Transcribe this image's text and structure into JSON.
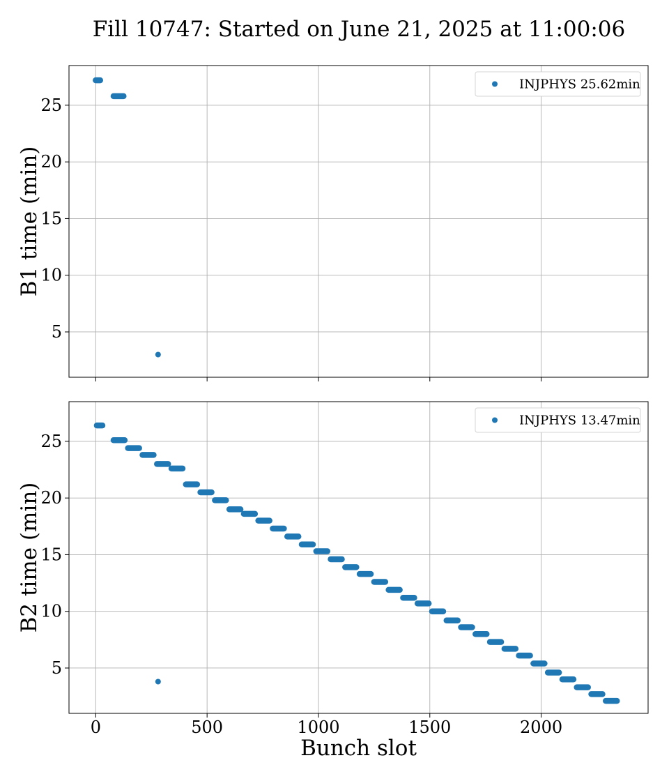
{
  "title": "Fill 10747: Started on June 21, 2025 at 11:00:06",
  "colors": {
    "series": "#1f77b4",
    "grid": "#b0b0b0"
  },
  "chart_data": [
    {
      "type": "scatter",
      "ylabel": "B1 time (min)",
      "xlabel": "",
      "xlim": [
        -120,
        2480
      ],
      "ylim": [
        1,
        28.5
      ],
      "xticks": [
        0,
        500,
        1000,
        1500,
        2000
      ],
      "yticks": [
        5,
        10,
        15,
        20,
        25
      ],
      "grid": true,
      "legend_position": "top-right",
      "series": [
        {
          "name": "INJPHYS 25.62min",
          "segments": [
            {
              "x": [
                0,
                20
              ],
              "y": 27.2
            },
            {
              "x": [
                80,
                125
              ],
              "y": 25.8
            },
            {
              "x": [
                280,
                280
              ],
              "y": 3.0
            }
          ]
        }
      ]
    },
    {
      "type": "scatter",
      "ylabel": "B2 time (min)",
      "xlabel": "Bunch slot",
      "xlim": [
        -120,
        2480
      ],
      "ylim": [
        1,
        28.5
      ],
      "xticks": [
        0,
        500,
        1000,
        1500,
        2000
      ],
      "yticks": [
        5,
        10,
        15,
        20,
        25
      ],
      "grid": true,
      "legend_position": "top-right",
      "series": [
        {
          "name": "INJPHYS 13.47min",
          "segments": [
            {
              "x": [
                5,
                30
              ],
              "y": 26.4
            },
            {
              "x": [
                80,
                130
              ],
              "y": 25.1
            },
            {
              "x": [
                145,
                195
              ],
              "y": 24.4
            },
            {
              "x": [
                210,
                260
              ],
              "y": 23.8
            },
            {
              "x": [
                275,
                325
              ],
              "y": 23.0
            },
            {
              "x": [
                340,
                390
              ],
              "y": 22.6
            },
            {
              "x": [
                405,
                455
              ],
              "y": 21.2
            },
            {
              "x": [
                470,
                520
              ],
              "y": 20.5
            },
            {
              "x": [
                535,
                585
              ],
              "y": 19.8
            },
            {
              "x": [
                600,
                650
              ],
              "y": 19.0
            },
            {
              "x": [
                665,
                715
              ],
              "y": 18.6
            },
            {
              "x": [
                730,
                780
              ],
              "y": 18.0
            },
            {
              "x": [
                795,
                845
              ],
              "y": 17.3
            },
            {
              "x": [
                860,
                910
              ],
              "y": 16.6
            },
            {
              "x": [
                925,
                975
              ],
              "y": 15.9
            },
            {
              "x": [
                990,
                1040
              ],
              "y": 15.3
            },
            {
              "x": [
                1055,
                1105
              ],
              "y": 14.6
            },
            {
              "x": [
                1120,
                1170
              ],
              "y": 13.9
            },
            {
              "x": [
                1185,
                1235
              ],
              "y": 13.3
            },
            {
              "x": [
                1250,
                1300
              ],
              "y": 12.6
            },
            {
              "x": [
                1315,
                1365
              ],
              "y": 11.9
            },
            {
              "x": [
                1380,
                1430
              ],
              "y": 11.2
            },
            {
              "x": [
                1445,
                1495
              ],
              "y": 10.7
            },
            {
              "x": [
                1510,
                1560
              ],
              "y": 10.0
            },
            {
              "x": [
                1575,
                1625
              ],
              "y": 9.2
            },
            {
              "x": [
                1640,
                1690
              ],
              "y": 8.6
            },
            {
              "x": [
                1705,
                1755
              ],
              "y": 8.0
            },
            {
              "x": [
                1770,
                1820
              ],
              "y": 7.3
            },
            {
              "x": [
                1835,
                1885
              ],
              "y": 6.7
            },
            {
              "x": [
                1900,
                1950
              ],
              "y": 6.1
            },
            {
              "x": [
                1965,
                2015
              ],
              "y": 5.4
            },
            {
              "x": [
                2030,
                2080
              ],
              "y": 4.6
            },
            {
              "x": [
                2095,
                2145
              ],
              "y": 4.0
            },
            {
              "x": [
                2160,
                2210
              ],
              "y": 3.3
            },
            {
              "x": [
                2225,
                2275
              ],
              "y": 2.7
            },
            {
              "x": [
                2290,
                2340
              ],
              "y": 2.1
            },
            {
              "x": [
                280,
                280
              ],
              "y": 3.8
            }
          ]
        }
      ]
    }
  ]
}
